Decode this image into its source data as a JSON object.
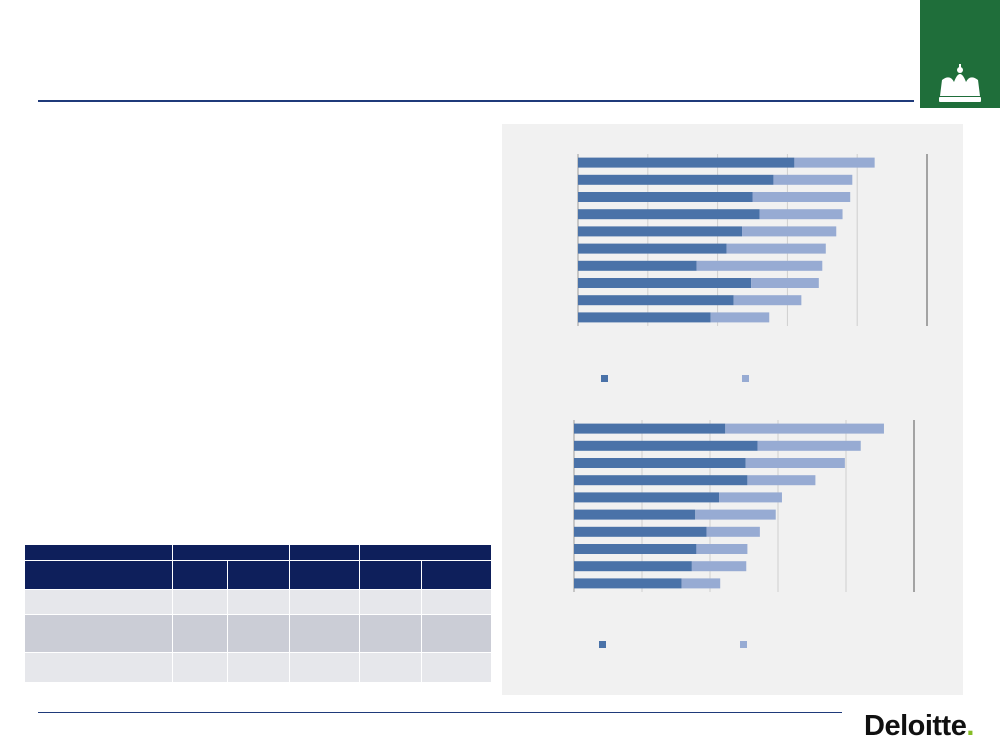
{
  "brand": {
    "logo_text": "Deloitte",
    "logo_dot": ".",
    "rule_color": "#1f3a7a",
    "crest_color": "#1f6e3a",
    "accent_green": "#86bc25"
  },
  "chart_data": [
    {
      "type": "bar",
      "stacked": true,
      "orientation": "horizontal",
      "series": [
        {
          "name": "",
          "color": "#4a72a8",
          "values": [
            31,
            28,
            25,
            26,
            23.5,
            21.3,
            17,
            24.8,
            22.3,
            19
          ]
        },
        {
          "name": "",
          "color": "#97abd3",
          "values": [
            11.5,
            11.3,
            14,
            11.9,
            13.5,
            14.2,
            18,
            9.7,
            9.7,
            8.4
          ]
        }
      ],
      "xlim": [
        0,
        50
      ],
      "grid": true,
      "legend": "bottom"
    },
    {
      "type": "bar",
      "stacked": true,
      "orientation": "horizontal",
      "series": [
        {
          "name": "",
          "color": "#4a72a8",
          "values": [
            26.7,
            32.4,
            30.3,
            30.6,
            25.6,
            21.4,
            23.4,
            21.6,
            20.8,
            19
          ]
        },
        {
          "name": "",
          "color": "#97abd3",
          "values": [
            28,
            18.2,
            17.5,
            12,
            11.1,
            14.2,
            9.4,
            9,
            9.6,
            6.8
          ]
        }
      ],
      "xlim": [
        0,
        60
      ],
      "grid": true,
      "legend": "bottom"
    }
  ]
}
